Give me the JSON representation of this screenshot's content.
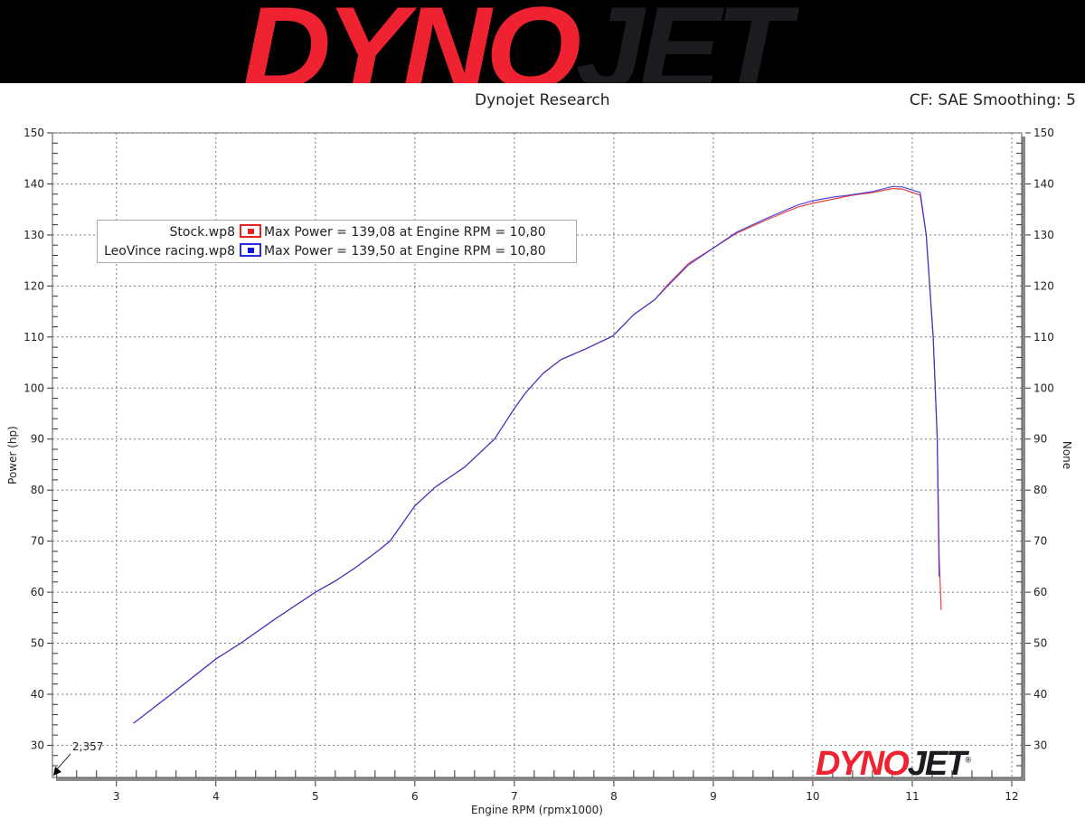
{
  "logo": {
    "part1": "DYNO",
    "part2": "JET",
    "registered": "®"
  },
  "header": {
    "title": "Dynojet Research",
    "settings": "CF: SAE Smoothing: 5"
  },
  "chart_data": {
    "type": "line",
    "title": "Dynojet Research",
    "xlabel": "Engine RPM (rpmx1000)",
    "ylabel": "Power (hp)",
    "y2label": "None",
    "xlim": [
      2.357,
      12.1
    ],
    "ylim": [
      23.7,
      150
    ],
    "xticks": [
      3,
      4,
      5,
      6,
      7,
      8,
      9,
      10,
      11,
      12
    ],
    "yticks": [
      30,
      40,
      50,
      60,
      70,
      80,
      90,
      100,
      110,
      120,
      130,
      140,
      150
    ],
    "x_origin_label": "2,357",
    "grid": true,
    "legend_position": "top-left",
    "series": [
      {
        "name": "Stock.wp8",
        "color": "#e8201f",
        "summary": "Max Power = 139,08 at Engine RPM = 10,80",
        "x": [
          3.17,
          3.55,
          4.0,
          4.25,
          4.6,
          5.0,
          5.2,
          5.41,
          5.63,
          5.75,
          6.0,
          6.2,
          6.5,
          6.8,
          7.0,
          7.11,
          7.29,
          7.47,
          7.72,
          7.99,
          8.2,
          8.41,
          8.54,
          8.75,
          8.99,
          9.23,
          9.54,
          9.84,
          10.0,
          10.2,
          10.4,
          10.6,
          10.8,
          10.9,
          11.0,
          11.08,
          11.14,
          11.21,
          11.25,
          11.27,
          11.29
        ],
        "y": [
          34.3,
          40,
          46.9,
          50,
          54.8,
          60,
          62.2,
          64.9,
          68.1,
          70,
          76.9,
          80.5,
          84.5,
          90,
          96,
          99,
          102.9,
          105.6,
          107.7,
          110.2,
          114.4,
          117.3,
          120.2,
          124.4,
          127.3,
          130.3,
          133.0,
          135.4,
          136.2,
          137.0,
          137.8,
          138.3,
          139.08,
          139.0,
          138.3,
          137.8,
          130,
          110,
          90.5,
          67,
          56.5
        ]
      },
      {
        "name": "LeoVince racing.wp8",
        "color": "#2a2ae0",
        "summary": "Max Power = 139,50 at Engine RPM = 10,80",
        "x": [
          3.17,
          3.55,
          4.0,
          4.25,
          4.6,
          5.0,
          5.2,
          5.41,
          5.63,
          5.75,
          6.0,
          6.2,
          6.5,
          6.8,
          7.0,
          7.11,
          7.29,
          7.47,
          7.72,
          7.99,
          8.2,
          8.41,
          8.54,
          8.75,
          8.99,
          9.23,
          9.54,
          9.84,
          10.0,
          10.2,
          10.4,
          10.6,
          10.8,
          10.9,
          11.0,
          11.08,
          11.14,
          11.21,
          11.25,
          11.27
        ],
        "y": [
          34.3,
          40,
          46.9,
          50,
          54.8,
          60,
          62.2,
          64.9,
          68.1,
          70,
          76.9,
          80.5,
          84.5,
          90,
          96,
          99,
          102.9,
          105.6,
          107.7,
          110.2,
          114.4,
          117.3,
          120,
          124.1,
          127.3,
          130.5,
          133.3,
          135.8,
          136.7,
          137.4,
          137.9,
          138.5,
          139.5,
          139.4,
          138.8,
          138.3,
          130,
          110,
          90.5,
          63
        ]
      }
    ]
  }
}
